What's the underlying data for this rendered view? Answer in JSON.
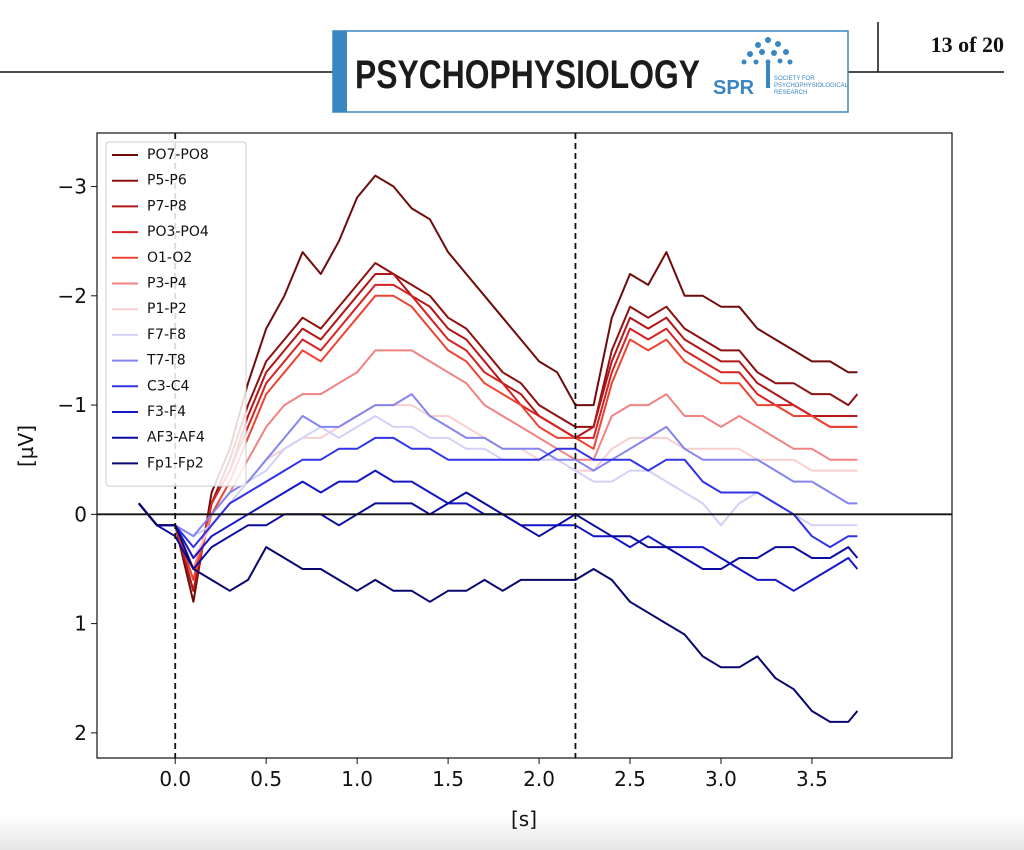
{
  "header": {
    "journal": "PSYCHOPHYSIOLOGY",
    "society_abbr": "SPR",
    "society_lines": [
      "SOCIETY FOR",
      "PSYCHOPHYSIOLOGICAL",
      "RESEARCH"
    ],
    "page": "13 of 20"
  },
  "chart_data": {
    "type": "line",
    "x_label": "[s]",
    "y_label": "[µV]",
    "x": [
      -0.2,
      -0.1,
      0,
      0.1,
      0.2,
      0.3,
      0.4,
      0.5,
      0.6,
      0.7,
      0.8,
      0.9,
      1.0,
      1.1,
      1.2,
      1.3,
      1.4,
      1.5,
      1.6,
      1.7,
      1.8,
      1.9,
      2.0,
      2.1,
      2.2,
      2.3,
      2.4,
      2.5,
      2.6,
      2.7,
      2.8,
      2.9,
      3.0,
      3.1,
      3.2,
      3.3,
      3.4,
      3.5,
      3.6,
      3.7,
      3.75
    ],
    "xlim": [
      -0.43,
      4.27
    ],
    "ylim": [
      -3.49,
      2.23
    ],
    "y_inverted": true,
    "xticks": [
      {
        "value": 0,
        "label": "0.0"
      },
      0.5,
      {
        "value": 1,
        "label": "1.0"
      },
      1.5,
      {
        "value": 2,
        "label": "2.0"
      },
      2.5,
      {
        "value": 3,
        "label": "3.0"
      },
      3.5
    ],
    "yticks": [
      {
        "value": -3,
        "label": "−3"
      },
      {
        "value": -2,
        "label": "−2"
      },
      {
        "value": -1,
        "label": "−1"
      },
      0,
      1,
      2
    ],
    "vlines": [
      0,
      2.2
    ],
    "hline": 0,
    "legend": "upper left",
    "grid": false,
    "series": [
      {
        "name": "PO7-PO8",
        "color": "#6e0b0b",
        "values": [
          -0.1,
          0.1,
          0.1,
          0.8,
          -0.2,
          -0.6,
          -1.2,
          -1.7,
          -2.0,
          -2.4,
          -2.2,
          -2.5,
          -2.9,
          -3.1,
          -3.0,
          -2.8,
          -2.7,
          -2.4,
          -2.2,
          -2.0,
          -1.8,
          -1.6,
          -1.4,
          -1.3,
          -1.0,
          -1.0,
          -1.8,
          -2.2,
          -2.1,
          -2.4,
          -2.0,
          -2.0,
          -1.9,
          -1.9,
          -1.7,
          -1.6,
          -1.5,
          -1.4,
          -1.4,
          -1.3,
          -1.3
        ]
      },
      {
        "name": "P5-P6",
        "color": "#8e1111",
        "values": [
          -0.1,
          0.1,
          0.1,
          0.7,
          -0.1,
          -0.5,
          -1.0,
          -1.4,
          -1.6,
          -1.8,
          -1.7,
          -1.9,
          -2.1,
          -2.3,
          -2.2,
          -2.1,
          -2.0,
          -1.8,
          -1.7,
          -1.5,
          -1.3,
          -1.2,
          -1.0,
          -0.9,
          -0.8,
          -0.8,
          -1.5,
          -1.9,
          -1.8,
          -1.9,
          -1.7,
          -1.6,
          -1.5,
          -1.5,
          -1.3,
          -1.2,
          -1.2,
          -1.1,
          -1.1,
          -1.0,
          -1.1
        ]
      },
      {
        "name": "P7-P8",
        "color": "#b31616",
        "values": [
          -0.1,
          0.1,
          0.1,
          0.7,
          -0.1,
          -0.4,
          -0.9,
          -1.3,
          -1.5,
          -1.7,
          -1.6,
          -1.8,
          -2.0,
          -2.2,
          -2.2,
          -2.0,
          -1.9,
          -1.7,
          -1.6,
          -1.4,
          -1.2,
          -1.1,
          -0.9,
          -0.8,
          -0.7,
          -0.8,
          -1.4,
          -1.8,
          -1.7,
          -1.8,
          -1.6,
          -1.5,
          -1.4,
          -1.4,
          -1.2,
          -1.1,
          -1.0,
          -0.9,
          -0.9,
          -0.9,
          -0.9
        ]
      },
      {
        "name": "PO3-PO4",
        "color": "#d62222",
        "values": [
          -0.1,
          0.1,
          0.1,
          0.6,
          -0.1,
          -0.4,
          -0.8,
          -1.2,
          -1.4,
          -1.6,
          -1.5,
          -1.7,
          -1.9,
          -2.1,
          -2.1,
          -2.0,
          -1.8,
          -1.6,
          -1.5,
          -1.3,
          -1.2,
          -1.0,
          -0.9,
          -0.8,
          -0.7,
          -0.7,
          -1.3,
          -1.7,
          -1.6,
          -1.7,
          -1.5,
          -1.4,
          -1.3,
          -1.3,
          -1.1,
          -1.0,
          -1.0,
          -0.9,
          -0.8,
          -0.8,
          -0.8
        ]
      },
      {
        "name": "O1-O2",
        "color": "#ea4532",
        "values": [
          -0.1,
          0.1,
          0.1,
          0.6,
          0.0,
          -0.3,
          -0.7,
          -1.1,
          -1.3,
          -1.5,
          -1.4,
          -1.6,
          -1.8,
          -2.0,
          -2.0,
          -1.9,
          -1.7,
          -1.5,
          -1.4,
          -1.2,
          -1.1,
          -1.0,
          -0.8,
          -0.7,
          -0.7,
          -0.6,
          -1.2,
          -1.6,
          -1.5,
          -1.6,
          -1.4,
          -1.3,
          -1.2,
          -1.2,
          -1.0,
          -1.0,
          -0.9,
          -0.9,
          -0.8,
          -0.8,
          -0.8
        ]
      },
      {
        "name": "P3-P4",
        "color": "#f08383",
        "values": [
          -0.1,
          0.1,
          0.1,
          0.5,
          0.0,
          -0.2,
          -0.5,
          -0.8,
          -1.0,
          -1.1,
          -1.1,
          -1.2,
          -1.3,
          -1.5,
          -1.5,
          -1.5,
          -1.4,
          -1.3,
          -1.2,
          -1.0,
          -0.9,
          -0.8,
          -0.7,
          -0.6,
          -0.5,
          -0.5,
          -0.9,
          -1.0,
          -1.0,
          -1.1,
          -0.9,
          -0.9,
          -0.8,
          -0.9,
          -0.8,
          -0.7,
          -0.6,
          -0.6,
          -0.5,
          -0.5,
          -0.5
        ]
      },
      {
        "name": "P1-P2",
        "color": "#f7cfcf",
        "values": [
          -0.1,
          0.1,
          0.1,
          0.4,
          0.1,
          -0.1,
          -0.3,
          -0.5,
          -0.6,
          -0.7,
          -0.7,
          -0.8,
          -0.9,
          -1.0,
          -1.0,
          -1.0,
          -0.9,
          -0.9,
          -0.8,
          -0.7,
          -0.6,
          -0.6,
          -0.5,
          -0.5,
          -0.4,
          -0.4,
          -0.6,
          -0.7,
          -0.7,
          -0.7,
          -0.6,
          -0.6,
          -0.6,
          -0.6,
          -0.5,
          -0.5,
          -0.5,
          -0.4,
          -0.4,
          -0.4,
          -0.4
        ]
      },
      {
        "name": "F7-F8",
        "color": "#d2d2f7",
        "values": [
          -0.1,
          0.1,
          0.1,
          0.2,
          0.1,
          -0.1,
          -0.3,
          -0.4,
          -0.6,
          -0.7,
          -0.8,
          -0.7,
          -0.8,
          -0.9,
          -0.8,
          -0.8,
          -0.7,
          -0.7,
          -0.6,
          -0.6,
          -0.5,
          -0.5,
          -0.5,
          -0.5,
          -0.4,
          -0.3,
          -0.3,
          -0.4,
          -0.4,
          -0.3,
          -0.2,
          -0.1,
          0.1,
          -0.1,
          -0.2,
          -0.1,
          0.0,
          0.1,
          0.1,
          0.1,
          0.1
        ]
      },
      {
        "name": "T7-T8",
        "color": "#8585f0",
        "values": [
          -0.1,
          0.1,
          0.1,
          0.2,
          0.0,
          -0.2,
          -0.3,
          -0.5,
          -0.7,
          -0.9,
          -0.8,
          -0.8,
          -0.9,
          -1.0,
          -1.0,
          -1.1,
          -0.9,
          -0.8,
          -0.7,
          -0.7,
          -0.6,
          -0.6,
          -0.6,
          -0.5,
          -0.5,
          -0.4,
          -0.5,
          -0.6,
          -0.7,
          -0.8,
          -0.6,
          -0.5,
          -0.5,
          -0.5,
          -0.5,
          -0.4,
          -0.3,
          -0.3,
          -0.2,
          -0.1,
          -0.1
        ]
      },
      {
        "name": "C3-C4",
        "color": "#3232e6",
        "values": [
          -0.1,
          0.1,
          0.1,
          0.3,
          0.1,
          -0.1,
          -0.2,
          -0.3,
          -0.4,
          -0.5,
          -0.5,
          -0.6,
          -0.6,
          -0.7,
          -0.7,
          -0.6,
          -0.6,
          -0.5,
          -0.5,
          -0.5,
          -0.5,
          -0.5,
          -0.5,
          -0.6,
          -0.6,
          -0.5,
          -0.5,
          -0.5,
          -0.4,
          -0.5,
          -0.5,
          -0.3,
          -0.2,
          -0.2,
          -0.2,
          -0.1,
          0.0,
          0.2,
          0.3,
          0.2,
          0.2
        ]
      },
      {
        "name": "F3-F4",
        "color": "#1616c6",
        "values": [
          -0.1,
          0.1,
          0.1,
          0.4,
          0.2,
          0.1,
          0.0,
          -0.1,
          -0.2,
          -0.3,
          -0.2,
          -0.3,
          -0.3,
          -0.4,
          -0.3,
          -0.3,
          -0.2,
          -0.1,
          -0.1,
          0.0,
          0.0,
          0.1,
          0.1,
          0.1,
          0.1,
          0.2,
          0.2,
          0.3,
          0.2,
          0.3,
          0.3,
          0.3,
          0.4,
          0.5,
          0.6,
          0.6,
          0.7,
          0.6,
          0.5,
          0.4,
          0.5
        ]
      },
      {
        "name": "AF3-AF4",
        "color": "#0b0ba0",
        "values": [
          -0.1,
          0.1,
          0.2,
          0.5,
          0.3,
          0.2,
          0.1,
          0.1,
          0.0,
          0.0,
          0.0,
          0.1,
          0.0,
          -0.1,
          -0.1,
          -0.1,
          0.0,
          -0.1,
          -0.2,
          -0.1,
          0.0,
          0.1,
          0.2,
          0.1,
          0.0,
          0.1,
          0.2,
          0.2,
          0.3,
          0.3,
          0.4,
          0.5,
          0.5,
          0.4,
          0.4,
          0.3,
          0.3,
          0.4,
          0.4,
          0.3,
          0.4
        ]
      },
      {
        "name": "Fp1-Fp2",
        "color": "#07076e",
        "values": [
          -0.1,
          0.1,
          0.1,
          0.5,
          0.6,
          0.7,
          0.6,
          0.3,
          0.4,
          0.5,
          0.5,
          0.6,
          0.7,
          0.6,
          0.7,
          0.7,
          0.8,
          0.7,
          0.7,
          0.6,
          0.7,
          0.6,
          0.6,
          0.6,
          0.6,
          0.5,
          0.6,
          0.8,
          0.9,
          1.0,
          1.1,
          1.3,
          1.4,
          1.4,
          1.3,
          1.5,
          1.6,
          1.8,
          1.9,
          1.9,
          1.8
        ]
      }
    ]
  }
}
